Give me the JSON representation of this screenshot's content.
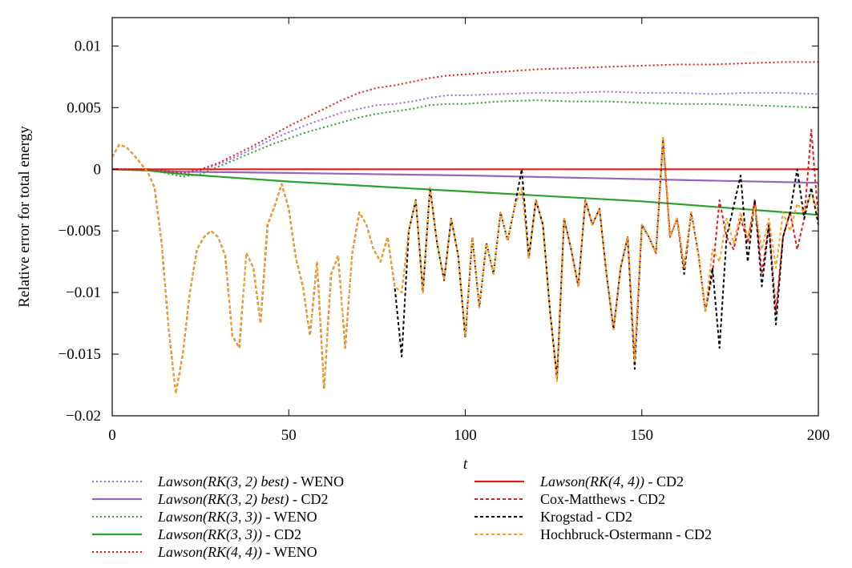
{
  "chart_data": {
    "type": "line",
    "title": "",
    "xlabel": "t",
    "ylabel": "Relative error for total energy",
    "xlim": [
      0,
      200
    ],
    "ylim": [
      -0.02,
      0.0123
    ],
    "xticks": [
      0,
      50,
      100,
      150,
      200
    ],
    "xtick_labels": [
      "0",
      "50",
      "100",
      "150",
      "200"
    ],
    "yticks": [
      -0.02,
      -0.015,
      -0.01,
      -0.005,
      0,
      0.005,
      0.01
    ],
    "ytick_labels": [
      "−0.02",
      "−0.015",
      "−0.01",
      "−0.005",
      "0",
      "0.005",
      "0.01"
    ],
    "grid": false,
    "legend_position": "below",
    "series": [
      {
        "name": "Lawson(RK(3,2) best) - WENO",
        "color": "#a066d3",
        "dash": "dotted",
        "x": [
          0,
          10,
          20,
          25,
          30,
          35,
          40,
          45,
          50,
          55,
          60,
          65,
          70,
          75,
          80,
          85,
          90,
          95,
          100,
          110,
          120,
          130,
          140,
          150,
          160,
          170,
          180,
          190,
          200
        ],
        "y": [
          0,
          0,
          -0.0004,
          -0.0001,
          0.0004,
          0.001,
          0.0017,
          0.0024,
          0.003,
          0.0036,
          0.0041,
          0.0046,
          0.0049,
          0.0052,
          0.0053,
          0.0055,
          0.0058,
          0.006,
          0.006,
          0.0061,
          0.0062,
          0.0062,
          0.0063,
          0.0062,
          0.0062,
          0.0061,
          0.0062,
          0.0062,
          0.0061
        ]
      },
      {
        "name": "Lawson(RK(3,2) best) - CD2",
        "color": "#9467bd",
        "dash": "solid",
        "x": [
          0,
          10,
          20,
          50,
          100,
          150,
          200
        ],
        "y": [
          0,
          -0.0001,
          -0.0002,
          -0.0003,
          -0.0005,
          -0.0008,
          -0.0011
        ]
      },
      {
        "name": "Lawson(RK(3,3)) - WENO",
        "color": "#2ca02c",
        "dash": "dotted",
        "x": [
          0,
          10,
          20,
          25,
          30,
          35,
          40,
          45,
          50,
          55,
          60,
          65,
          70,
          75,
          80,
          85,
          90,
          95,
          100,
          110,
          120,
          130,
          140,
          150,
          160,
          170,
          180,
          190,
          200
        ],
        "y": [
          0,
          0,
          -0.0006,
          -0.0004,
          0.0002,
          0.0008,
          0.0014,
          0.002,
          0.0025,
          0.003,
          0.0034,
          0.0038,
          0.0042,
          0.0045,
          0.0047,
          0.0049,
          0.0052,
          0.0053,
          0.0053,
          0.0055,
          0.0056,
          0.0055,
          0.0055,
          0.0054,
          0.0053,
          0.0053,
          0.0052,
          0.0051,
          0.005
        ]
      },
      {
        "name": "Lawson(RK(3,3)) - CD2",
        "color": "#2ca02c",
        "dash": "solid",
        "x": [
          0,
          10,
          20,
          50,
          100,
          150,
          200
        ],
        "y": [
          0,
          -0.0001,
          -0.0004,
          -0.001,
          -0.0018,
          -0.0026,
          -0.0037
        ]
      },
      {
        "name": "Lawson(RK(4,4)) - WENO",
        "color": "#e31a1c",
        "dash": "dotted",
        "x": [
          0,
          10,
          20,
          25,
          30,
          35,
          40,
          45,
          50,
          55,
          60,
          65,
          70,
          75,
          80,
          85,
          90,
          95,
          100,
          110,
          120,
          130,
          140,
          150,
          160,
          170,
          180,
          190,
          200
        ],
        "y": [
          0,
          0,
          -0.0003,
          0,
          0.0005,
          0.0012,
          0.0019,
          0.0027,
          0.0035,
          0.0042,
          0.0049,
          0.0056,
          0.0062,
          0.0066,
          0.0068,
          0.0071,
          0.0074,
          0.0076,
          0.0077,
          0.0079,
          0.0081,
          0.0082,
          0.0083,
          0.0084,
          0.0085,
          0.0085,
          0.0086,
          0.0087,
          0.0087
        ]
      },
      {
        "name": "Lawson(RK(4,4)) - CD2",
        "color": "#e31a1c",
        "dash": "solid",
        "x": [
          0,
          200
        ],
        "y": [
          0,
          0
        ]
      },
      {
        "name": "Cox-Matthews - CD2",
        "color": "#e31a1c",
        "dash": "dashed",
        "x": [
          0,
          2,
          4,
          6,
          8,
          10,
          12,
          14,
          16,
          18,
          20,
          22,
          24,
          26,
          28,
          30,
          32,
          34,
          36,
          38,
          40,
          42,
          44,
          46,
          48,
          50,
          52,
          54,
          56,
          58,
          60,
          62,
          64,
          66,
          68,
          70,
          72,
          74,
          76,
          78,
          80,
          82,
          84,
          86,
          88,
          90,
          92,
          94,
          96,
          98,
          100,
          102,
          104,
          106,
          108,
          110,
          112,
          114,
          116,
          118,
          120,
          122,
          124,
          126,
          128,
          130,
          132,
          134,
          136,
          138,
          140,
          142,
          144,
          146,
          148,
          150,
          152,
          154,
          156,
          158,
          160,
          162,
          164,
          166,
          168,
          170,
          172,
          174,
          176,
          178,
          180,
          182,
          184,
          186,
          188,
          190,
          192,
          194,
          196,
          198,
          200
        ],
        "y": [
          0.001,
          0.002,
          0.0018,
          0.0012,
          0.0005,
          -0.0002,
          -0.0015,
          -0.006,
          -0.013,
          -0.0182,
          -0.015,
          -0.01,
          -0.0065,
          -0.0055,
          -0.005,
          -0.0055,
          -0.007,
          -0.0135,
          -0.0145,
          -0.0068,
          -0.008,
          -0.0125,
          -0.0045,
          -0.003,
          -0.0012,
          -0.0032,
          -0.0072,
          -0.0095,
          -0.0135,
          -0.0075,
          -0.0178,
          -0.0085,
          -0.007,
          -0.0145,
          -0.0068,
          -0.0035,
          -0.0045,
          -0.0065,
          -0.0075,
          -0.0055,
          -0.0095,
          -0.01,
          -0.005,
          -0.0025,
          -0.01,
          -0.0015,
          -0.006,
          -0.009,
          -0.004,
          -0.007,
          -0.0135,
          -0.0055,
          -0.0112,
          -0.006,
          -0.0085,
          -0.0035,
          -0.0058,
          -0.003,
          -0.0015,
          -0.0072,
          -0.0025,
          -0.0045,
          -0.0115,
          -0.017,
          -0.004,
          -0.0065,
          -0.0095,
          -0.0025,
          -0.0045,
          -0.0032,
          -0.0085,
          -0.013,
          -0.008,
          -0.0055,
          -0.0155,
          -0.0045,
          -0.0055,
          -0.0068,
          0.0025,
          -0.0055,
          -0.004,
          -0.008,
          -0.0035,
          -0.0068,
          -0.0115,
          -0.0085,
          -0.0025,
          -0.0055,
          -0.0065,
          -0.004,
          -0.006,
          -0.0025,
          -0.0085,
          -0.0045,
          -0.0115,
          -0.0055,
          -0.0035,
          -0.0065,
          -0.004,
          0.0032,
          -0.004
        ]
      },
      {
        "name": "Krogstad - CD2",
        "color": "#000000",
        "dash": "dashed",
        "x": [
          0,
          2,
          4,
          6,
          8,
          10,
          12,
          14,
          16,
          18,
          20,
          22,
          24,
          26,
          28,
          30,
          32,
          34,
          36,
          38,
          40,
          42,
          44,
          46,
          48,
          50,
          52,
          54,
          56,
          58,
          60,
          62,
          64,
          66,
          68,
          70,
          72,
          74,
          76,
          78,
          80,
          82,
          84,
          86,
          88,
          90,
          92,
          94,
          96,
          98,
          100,
          102,
          104,
          106,
          108,
          110,
          112,
          114,
          116,
          118,
          120,
          122,
          124,
          126,
          128,
          130,
          132,
          134,
          136,
          138,
          140,
          142,
          144,
          146,
          148,
          150,
          152,
          154,
          156,
          158,
          160,
          162,
          164,
          166,
          168,
          170,
          172,
          174,
          176,
          178,
          180,
          182,
          184,
          186,
          188,
          190,
          192,
          194,
          196,
          198,
          200
        ],
        "y": [
          0.001,
          0.002,
          0.0018,
          0.0012,
          0.0005,
          -0.0002,
          -0.0015,
          -0.006,
          -0.013,
          -0.0182,
          -0.015,
          -0.01,
          -0.0065,
          -0.0055,
          -0.005,
          -0.0055,
          -0.007,
          -0.0135,
          -0.0145,
          -0.0068,
          -0.008,
          -0.0125,
          -0.0045,
          -0.003,
          -0.0012,
          -0.0032,
          -0.0072,
          -0.0095,
          -0.0135,
          -0.0075,
          -0.0178,
          -0.0085,
          -0.007,
          -0.0145,
          -0.0068,
          -0.0035,
          -0.0045,
          -0.0065,
          -0.0075,
          -0.0055,
          -0.0095,
          -0.0152,
          -0.005,
          -0.0025,
          -0.01,
          -0.0015,
          -0.006,
          -0.009,
          -0.004,
          -0.007,
          -0.0137,
          -0.0055,
          -0.0112,
          -0.006,
          -0.0085,
          -0.0035,
          -0.0058,
          -0.003,
          0,
          -0.0072,
          -0.0025,
          -0.0045,
          -0.0115,
          -0.017,
          -0.004,
          -0.0065,
          -0.0095,
          -0.0025,
          -0.0045,
          -0.0032,
          -0.0085,
          -0.013,
          -0.008,
          -0.0055,
          -0.0162,
          -0.0045,
          -0.0055,
          -0.0068,
          0.0025,
          -0.0055,
          -0.004,
          -0.0085,
          -0.0035,
          -0.0068,
          -0.0115,
          -0.008,
          -0.0145,
          -0.0055,
          -0.003,
          -0.0005,
          -0.0075,
          -0.0025,
          -0.0095,
          -0.0045,
          -0.0126,
          -0.0055,
          -0.0035,
          0,
          -0.004,
          -0.0015,
          -0.0045
        ]
      },
      {
        "name": "Hochbruck-Ostermann - CD2",
        "color": "#ff9f1c",
        "dash": "dashed",
        "x": [
          0,
          2,
          4,
          6,
          8,
          10,
          12,
          14,
          16,
          18,
          20,
          22,
          24,
          26,
          28,
          30,
          32,
          34,
          36,
          38,
          40,
          42,
          44,
          46,
          48,
          50,
          52,
          54,
          56,
          58,
          60,
          62,
          64,
          66,
          68,
          70,
          72,
          74,
          76,
          78,
          80,
          82,
          84,
          86,
          88,
          90,
          92,
          94,
          96,
          98,
          100,
          102,
          104,
          106,
          108,
          110,
          112,
          114,
          116,
          118,
          120,
          122,
          124,
          126,
          128,
          130,
          132,
          134,
          136,
          138,
          140,
          142,
          144,
          146,
          148,
          150,
          152,
          154,
          156,
          158,
          160,
          162,
          164,
          166,
          168,
          170,
          172,
          174,
          176,
          178,
          180,
          182,
          184,
          186,
          188,
          190,
          192,
          194,
          196,
          198,
          200
        ],
        "y": [
          0.001,
          0.002,
          0.0018,
          0.0012,
          0.0005,
          -0.0002,
          -0.0015,
          -0.006,
          -0.013,
          -0.0182,
          -0.015,
          -0.01,
          -0.0065,
          -0.0055,
          -0.005,
          -0.0055,
          -0.007,
          -0.0135,
          -0.0145,
          -0.0068,
          -0.008,
          -0.0125,
          -0.0045,
          -0.003,
          -0.0012,
          -0.0032,
          -0.0072,
          -0.0095,
          -0.0135,
          -0.0075,
          -0.0178,
          -0.0085,
          -0.007,
          -0.0145,
          -0.0068,
          -0.0035,
          -0.0045,
          -0.0065,
          -0.0075,
          -0.0055,
          -0.0095,
          -0.01,
          -0.005,
          -0.0025,
          -0.01,
          -0.0015,
          -0.006,
          -0.009,
          -0.004,
          -0.007,
          -0.0135,
          -0.0055,
          -0.0112,
          -0.006,
          -0.0085,
          -0.0035,
          -0.0058,
          -0.003,
          -0.0015,
          -0.0072,
          -0.0025,
          -0.0045,
          -0.0115,
          -0.0172,
          -0.004,
          -0.0065,
          -0.0095,
          -0.0025,
          -0.0045,
          -0.0032,
          -0.0085,
          -0.013,
          -0.008,
          -0.0055,
          -0.0155,
          -0.0045,
          -0.0055,
          -0.0068,
          0.0027,
          -0.0055,
          -0.004,
          -0.008,
          -0.0035,
          -0.0068,
          -0.0115,
          -0.0065,
          -0.0075,
          -0.004,
          -0.006,
          -0.0035,
          -0.0055,
          -0.003,
          -0.0065,
          -0.004,
          -0.008,
          -0.0035,
          -0.005,
          -0.0028,
          -0.0035,
          -0.002,
          -0.0035
        ]
      }
    ],
    "legend_columns": [
      [
        {
          "prefix": "Lawson",
          "formula": "(RK(3, 2) best)",
          "suffix": " - WENO"
        },
        {
          "prefix": "Lawson",
          "formula": "(RK(3, 2) best)",
          "suffix": " - CD2"
        },
        {
          "prefix": "Lawson",
          "formula": "(RK(3, 3))",
          "suffix": " - WENO"
        },
        {
          "prefix": "Lawson",
          "formula": "(RK(3, 3))",
          "suffix": " - CD2"
        },
        {
          "prefix": "Lawson",
          "formula": "(RK(4, 4))",
          "suffix": " - WENO"
        }
      ],
      [
        {
          "prefix": "Lawson",
          "formula": "(RK(4, 4))",
          "suffix": " - CD2"
        },
        {
          "prefix": "",
          "formula": "",
          "suffix": "Cox-Matthews - CD2"
        },
        {
          "prefix": "",
          "formula": "",
          "suffix": "Krogstad - CD2"
        },
        {
          "prefix": "",
          "formula": "",
          "suffix": "Hochbruck-Ostermann - CD2"
        }
      ]
    ]
  }
}
